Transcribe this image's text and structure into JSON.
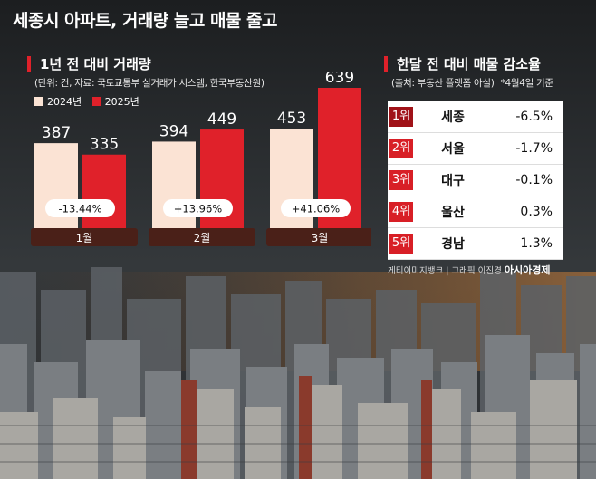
{
  "headline": "세종시 아파트, 거래량 늘고 매물 줄고",
  "left_panel": {
    "title": "1년 전 대비 거래량",
    "source": "(단위: 건, 자료: 국토교통부 실거래가 시스템, 한국부동산원)"
  },
  "right_panel": {
    "title": "한달 전 대비 매물 감소율",
    "source": "(출처: 부동산 플랫폼 아실)",
    "date": "*4월4일 기준",
    "rows": [
      {
        "rank": "1위",
        "region": "세종",
        "value": "-6.5%"
      },
      {
        "rank": "2위",
        "region": "서울",
        "value": "-1.7%"
      },
      {
        "rank": "3위",
        "region": "대구",
        "value": "-0.1%"
      },
      {
        "rank": "4위",
        "region": "울산",
        "value": "0.3%"
      },
      {
        "rank": "5위",
        "region": "경남",
        "value": "1.3%"
      }
    ]
  },
  "credit": {
    "text": "게티이미지뱅크 | 그래픽 이진경",
    "brand": "아시아경제"
  },
  "chart_data": {
    "type": "bar",
    "categories": [
      "1월",
      "2월",
      "3월"
    ],
    "series": [
      {
        "name": "2024년",
        "values": [
          387,
          394,
          453
        ],
        "color": "#fbe3d4"
      },
      {
        "name": "2025년",
        "values": [
          335,
          449,
          639
        ],
        "color": "#e0212a"
      }
    ],
    "changes": [
      "-13.44%",
      "+13.96%",
      "+41.06%"
    ],
    "title": "1년 전 대비 거래량",
    "legend_position": "top-left"
  }
}
